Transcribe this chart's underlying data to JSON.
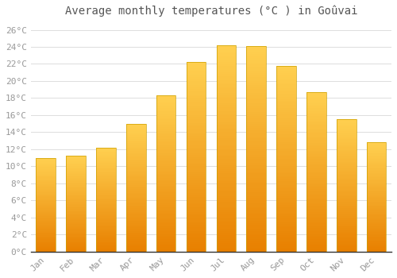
{
  "title": "Average monthly temperatures (°C ) in Goûvai",
  "months": [
    "Jan",
    "Feb",
    "Mar",
    "Apr",
    "May",
    "Jun",
    "Jul",
    "Aug",
    "Sep",
    "Oct",
    "Nov",
    "Dec"
  ],
  "temperatures": [
    11.0,
    11.2,
    12.2,
    15.0,
    18.3,
    22.2,
    24.2,
    24.1,
    21.8,
    18.7,
    15.5,
    12.8
  ],
  "bar_color_top": "#FFD050",
  "bar_color_bottom": "#E88000",
  "bar_edge_color": "#CCA000",
  "background_color": "#FFFFFF",
  "grid_color": "#DDDDDD",
  "text_color": "#999999",
  "title_color": "#555555",
  "ylim": [
    0,
    27
  ],
  "yticks": [
    0,
    2,
    4,
    6,
    8,
    10,
    12,
    14,
    16,
    18,
    20,
    22,
    24,
    26
  ],
  "title_fontsize": 10,
  "tick_fontsize": 8,
  "bar_width": 0.65
}
